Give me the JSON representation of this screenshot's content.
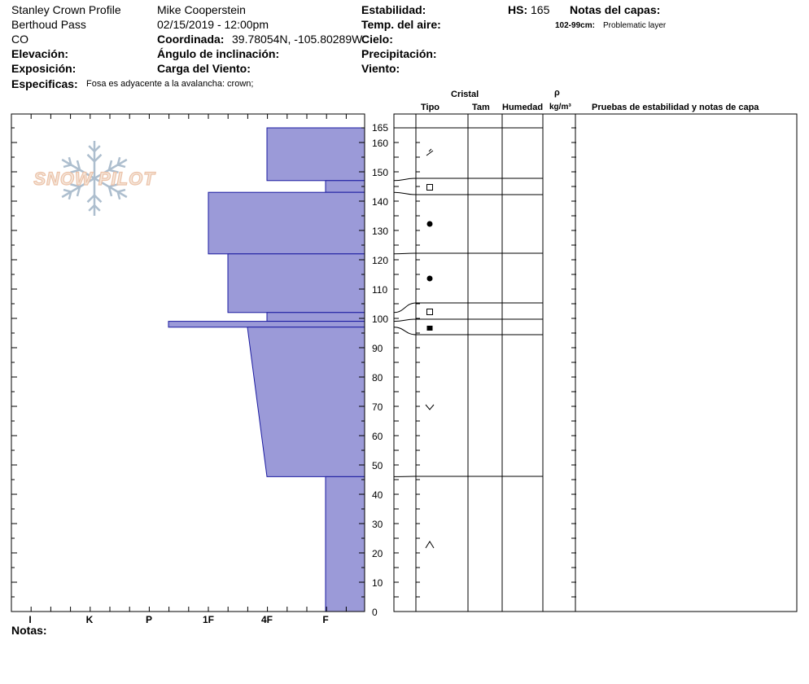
{
  "header": {
    "profile_name": "Stanley Crown Profile",
    "location": "Berthoud Pass",
    "state": "CO",
    "observer": "Mike Cooperstein",
    "datetime": "02/15/2019 - 12:00pm",
    "coord_label": "Coordinada:",
    "coord_value": "39.78054N, -105.80289W",
    "elevation_label": "Elevación:",
    "exposure_label": "Exposición:",
    "slope_label": "Ángulo de inclinación:",
    "wind_load_label": "Carga del Viento:",
    "stability_label": "Estabilidad:",
    "air_temp_label": "Temp. del aire:",
    "sky_label": "Cielo:",
    "precip_label": "Precipitación:",
    "wind_label": "Viento:",
    "hs_label": "HS:",
    "hs_value": "165",
    "layer_notes_label": "Notas del capas:",
    "layer_note_range": "102-99cm:",
    "layer_note_text": "Problematic layer",
    "specifics_label": "Especificas:",
    "specifics_text": "Fosa es adyacente a la avalancha: crown;",
    "notes_label": "Notas:"
  },
  "logo_text": "SNOW PILOT",
  "table_headers": {
    "crystal": "Cristal",
    "type": "Tipo",
    "size": "Tam",
    "moisture": "Humedad",
    "rho": "ρ",
    "density_unit": "kg/m³",
    "tests": "Pruebas de estabilidad y notas de capa"
  },
  "colors": {
    "hardness_fill": "#9b9ad8",
    "hardness_stroke": "#1a1aa0"
  },
  "chart_data": {
    "type": "bar",
    "orientation": "horizontal",
    "y_axis": {
      "label": "",
      "range": [
        0,
        165
      ],
      "ticks": [
        0,
        10,
        20,
        30,
        40,
        50,
        60,
        70,
        80,
        90,
        100,
        110,
        120,
        130,
        140,
        150,
        160,
        165
      ]
    },
    "x_axis": {
      "label": "",
      "categories": [
        "I",
        "K",
        "P",
        "1F",
        "4F",
        "F"
      ]
    },
    "layers": [
      {
        "top": 165,
        "bottom": 147,
        "hardness": "4F"
      },
      {
        "top": 147,
        "bottom": 143,
        "hardness": "F"
      },
      {
        "top": 143,
        "bottom": 122,
        "hardness": "1F"
      },
      {
        "top": 122,
        "bottom": 102,
        "hardness": "1F-"
      },
      {
        "top": 102,
        "bottom": 99,
        "hardness": "4F"
      },
      {
        "top": 99,
        "bottom": 97,
        "hardness": "P-"
      },
      {
        "top": 97,
        "bottom": 46,
        "hardness_top": "4F+",
        "hardness_bottom": "4F"
      },
      {
        "top": 46,
        "bottom": 0,
        "hardness": "F"
      }
    ],
    "grain_layers": [
      {
        "height": 156,
        "symbol": "decomposing"
      },
      {
        "height": 145,
        "symbol": "faceted"
      },
      {
        "height": 132,
        "symbol": "rounded"
      },
      {
        "height": 113,
        "symbol": "rounded"
      },
      {
        "height": 102,
        "symbol": "faceted"
      },
      {
        "height": 97,
        "symbol": "faceted-filled"
      },
      {
        "height": 70,
        "symbol": "surface-hoar-v"
      },
      {
        "height": 23,
        "symbol": "depth-hoar"
      }
    ]
  }
}
